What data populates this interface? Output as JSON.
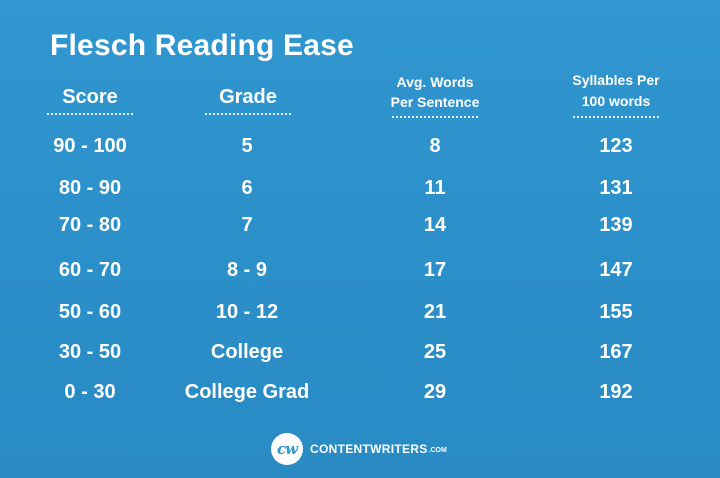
{
  "title": "Flesch Reading Ease",
  "columns": {
    "score": "Score",
    "grade": "Grade",
    "words_line1": "Avg. Words",
    "words_line2": "Per Sentence",
    "syllables_line1": "Syllables Per",
    "syllables_line2": "100 words"
  },
  "rows": [
    {
      "score": "90 - 100",
      "grade": "5",
      "words": "8",
      "syllables": "123"
    },
    {
      "score": "80 - 90",
      "grade": "6",
      "words": "11",
      "syllables": "131"
    },
    {
      "score": "70 - 80",
      "grade": "7",
      "words": "14",
      "syllables": "139"
    },
    {
      "score": "60 - 70",
      "grade": "8 - 9",
      "words": "17",
      "syllables": "147"
    },
    {
      "score": "50 - 60",
      "grade": "10 - 12",
      "words": "21",
      "syllables": "155"
    },
    {
      "score": "30 - 50",
      "grade": "College",
      "words": "25",
      "syllables": "167"
    },
    {
      "score": "0 - 30",
      "grade": "College Grad",
      "words": "29",
      "syllables": "192"
    }
  ],
  "brand": {
    "logo_text": "cw",
    "name": "CONTENTWRITERS",
    "tld": ".COM"
  },
  "colors": {
    "background": "#2f93cc",
    "text": "#ffffff"
  }
}
